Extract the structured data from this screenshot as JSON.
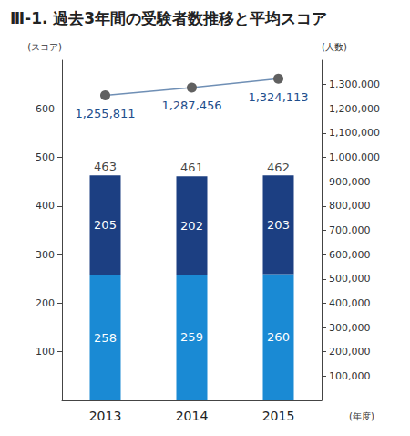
{
  "chart_data": {
    "type": "bar",
    "title": "Ⅲ-1. 過去3年間の受験者数推移と平均スコア",
    "y_label": "(スコア)",
    "y2_label": "(人数)",
    "x_label": "(年度)",
    "categories": [
      "2013",
      "2014",
      "2015"
    ],
    "stacked": true,
    "data_labels": true,
    "grid": false,
    "series": [
      {
        "type": "bar",
        "color": "#1a8ad4",
        "values": [
          258,
          259,
          260
        ]
      },
      {
        "type": "bar",
        "color": "#1c3f82",
        "values": [
          205,
          202,
          203
        ]
      },
      {
        "type": "line",
        "axis": "y2",
        "color": "#6f8fb5",
        "marker": "circle",
        "values": [
          1255811,
          1287456,
          1324113
        ],
        "value_labels": [
          "1,255,811",
          "1,287,456",
          "1,324,113"
        ]
      }
    ],
    "totals": [
      463,
      461,
      462
    ],
    "ylim": [
      0,
      700
    ],
    "yticks": [
      100,
      200,
      300,
      400,
      500,
      600
    ],
    "y2lim": [
      0,
      1400000
    ],
    "y2ticks": [
      {
        "value": 100000,
        "label": "100,000"
      },
      {
        "value": 200000,
        "label": "200,000"
      },
      {
        "value": 300000,
        "label": "300,000"
      },
      {
        "value": 400000,
        "label": "400,000"
      },
      {
        "value": 500000,
        "label": "500,000"
      },
      {
        "value": 600000,
        "label": "600,000"
      },
      {
        "value": 700000,
        "label": "700,000"
      },
      {
        "value": 800000,
        "label": "800,000"
      },
      {
        "value": 900000,
        "label": "900,000"
      },
      {
        "value": 1000000,
        "label": "1,000,000"
      },
      {
        "value": 1100000,
        "label": "1,100,000"
      },
      {
        "value": 1200000,
        "label": "1,200,000"
      },
      {
        "value": 1300000,
        "label": "1,300,000"
      }
    ]
  }
}
